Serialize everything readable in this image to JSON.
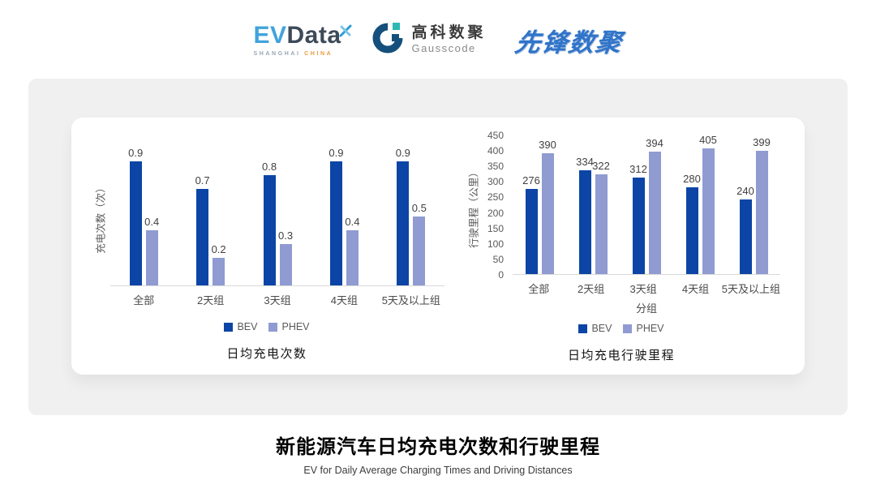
{
  "header": {
    "logos": {
      "evdata": {
        "ev": "EV",
        "data": "Data",
        "sub_left": "SHANGHAI",
        "sub_right": "CHINA"
      },
      "gausscode": {
        "cn": "高科数聚",
        "en": "Gausscode"
      },
      "pioneer": {
        "text": "先锋数聚"
      }
    }
  },
  "colors": {
    "bev": "#0C45A5",
    "phev": "#8F9BD1",
    "panel": "#F0F0F0",
    "baseline": "#D9D9D9"
  },
  "chart_data": [
    {
      "type": "bar",
      "title": "日均充电次数",
      "ylabel": "充电次数（次）",
      "xlabel": "",
      "categories": [
        "全部",
        "2天组",
        "3天组",
        "4天组",
        "5天及以上组"
      ],
      "series": [
        {
          "name": "BEV",
          "color": "#0C45A5",
          "values": [
            0.9,
            0.7,
            0.8,
            0.9,
            0.9
          ]
        },
        {
          "name": "PHEV",
          "color": "#8F9BD1",
          "values": [
            0.4,
            0.2,
            0.3,
            0.4,
            0.5
          ]
        }
      ],
      "ylim": [
        0,
        1.0
      ],
      "y_ticks": [],
      "grid": false,
      "legend_position": "bottom"
    },
    {
      "type": "bar",
      "title": "日均充电行驶里程",
      "ylabel": "行驶里程（公里）",
      "xlabel": "分组",
      "categories": [
        "全部",
        "2天组",
        "3天组",
        "4天组",
        "5天及以上组"
      ],
      "series": [
        {
          "name": "BEV",
          "color": "#0C45A5",
          "values": [
            276,
            334,
            312,
            280,
            240
          ]
        },
        {
          "name": "PHEV",
          "color": "#8F9BD1",
          "values": [
            390,
            322,
            394,
            405,
            399
          ]
        }
      ],
      "ylim": [
        0,
        450
      ],
      "y_ticks": [
        "450",
        "400",
        "350",
        "300",
        "250",
        "200",
        "150",
        "100",
        "50",
        "0"
      ],
      "grid": false,
      "legend_position": "bottom"
    }
  ],
  "footer": {
    "title": "新能源汽车日均充电次数和行驶里程",
    "subtitle": "EV for Daily Average Charging Times and Driving Distances"
  }
}
